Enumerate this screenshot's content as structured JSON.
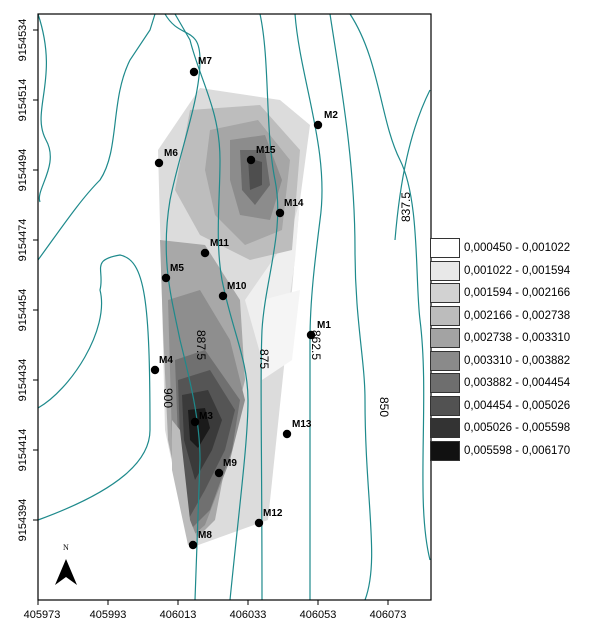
{
  "map": {
    "x_ticks": [
      "405973",
      "405993",
      "406013",
      "406033",
      "406053",
      "406073"
    ],
    "y_ticks": [
      "9154534",
      "9154514",
      "9154494",
      "9154474",
      "9154454",
      "9154434",
      "9154414",
      "9154394"
    ],
    "north_label": "N",
    "contour_labels": [
      "837.5",
      "850",
      "862.5",
      "875",
      "887.5",
      "900"
    ],
    "points": [
      "M1",
      "M2",
      "M3",
      "M4",
      "M5",
      "M6",
      "M7",
      "M8",
      "M9",
      "M10",
      "M11",
      "M12",
      "M13",
      "M14",
      "M15"
    ]
  },
  "legend": {
    "items": [
      {
        "label": "0,000450 - 0,001022",
        "color": "#ffffff"
      },
      {
        "label": "0,001022 - 0,001594",
        "color": "#e8e8e8"
      },
      {
        "label": "0,001594 - 0,002166",
        "color": "#d2d2d2"
      },
      {
        "label": "0,002166 - 0,002738",
        "color": "#bcbcbc"
      },
      {
        "label": "0,002738 - 0,003310",
        "color": "#a3a3a3"
      },
      {
        "label": "0,003310 - 0,003882",
        "color": "#8a8a8a"
      },
      {
        "label": "0,003882 - 0,004454",
        "color": "#6e6e6e"
      },
      {
        "label": "0,004454 - 0,005026",
        "color": "#525252"
      },
      {
        "label": "0,005026 - 0,005598",
        "color": "#333333"
      },
      {
        "label": "0,005598 - 0,006170",
        "color": "#111111"
      }
    ]
  }
}
